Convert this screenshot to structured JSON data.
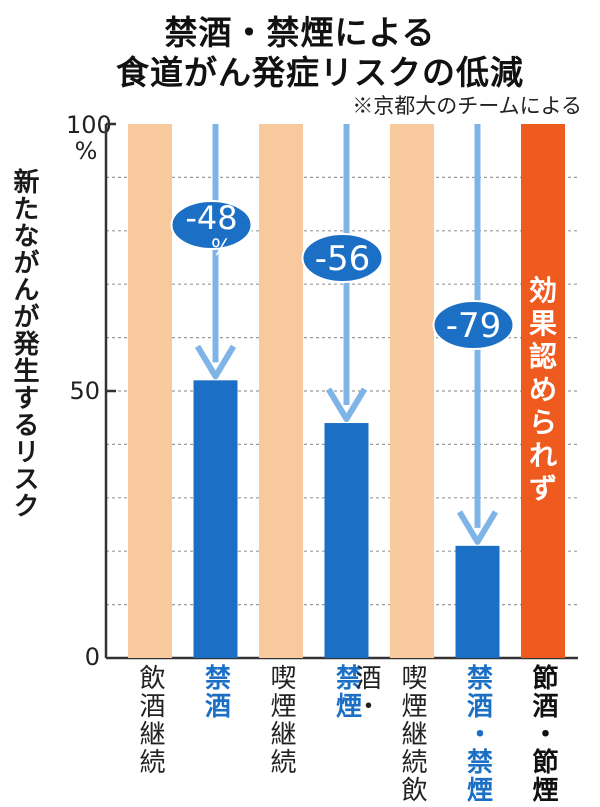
{
  "title_line1": "禁酒・禁煙による",
  "title_line2": "食道がん発症リスクの低減",
  "credit": "※京都大のチームによる",
  "chart_data": {
    "type": "bar",
    "title": "禁酒・禁煙による食道がん発症リスクの低減",
    "ylabel": "新たながんが発生するリスク",
    "ylim": [
      0,
      100
    ],
    "yticks": [
      "0",
      "50",
      "100\n%"
    ],
    "grid": true,
    "categories": [
      "飲酒継続",
      "禁酒",
      "喫煙継続",
      "禁煙",
      "喫煙・飲酒継続",
      "禁酒・禁煙",
      "節酒・節煙"
    ],
    "category_labels": [
      "飲酒継続",
      "禁酒",
      "喫煙継続",
      "禁煙",
      "喫煙継続飲酒・",
      "禁酒・禁煙",
      "節酒・節煙"
    ],
    "values": [
      100,
      52,
      100,
      44,
      100,
      21,
      100
    ],
    "bar_colors": [
      "#f8c99c",
      "#1b6fc5",
      "#f8c99c",
      "#1b6fc5",
      "#f8c99c",
      "#1b6fc5",
      "#ef5a1e"
    ],
    "label_colors": [
      "#222222",
      "#1b6fc5",
      "#222222",
      "#1b6fc5",
      "#222222",
      "#1b6fc5",
      "#111111"
    ],
    "reductions": [
      {
        "from_index": 0,
        "to_index": 1,
        "label": "-48",
        "unit": "%"
      },
      {
        "from_index": 2,
        "to_index": 3,
        "label": "-56",
        "unit": ""
      },
      {
        "from_index": 4,
        "to_index": 5,
        "label": "-79",
        "unit": ""
      }
    ],
    "annotation": "効果認められず",
    "colors": {
      "continue": "#f8c99c",
      "quit": "#1b6fc5",
      "reduce": "#ef5a1e",
      "arrow": "#7fb5e6"
    }
  }
}
